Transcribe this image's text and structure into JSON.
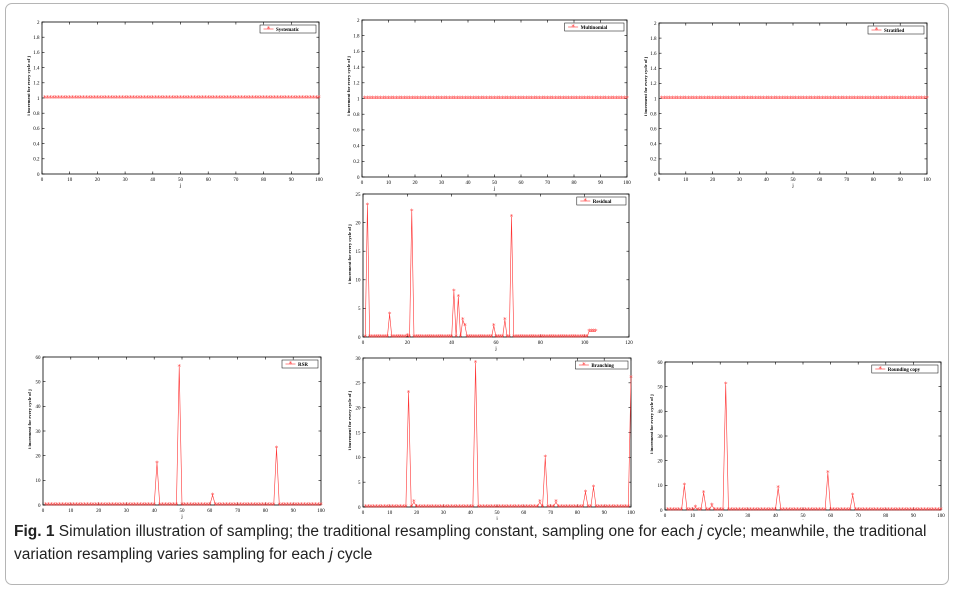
{
  "caption": {
    "label": "Fig. 1",
    "text_1": "Simulation illustration of sampling; the traditional resampling constant, sampling one for each",
    "var_j": "j",
    "text_2": "cycle; meanwhile, the traditional variation resampling varies sampling for each",
    "text_3": "cycle"
  },
  "colors": {
    "series": "#ff3333",
    "axis": "#000000",
    "marker": "*"
  },
  "chart_data": [
    {
      "type": "line",
      "legend": "Systematic",
      "legend_position": "top-right",
      "xlabel": "j",
      "ylabel": "i increment for every cycle of j",
      "xlim": [
        0,
        100
      ],
      "ylim": [
        0,
        2
      ],
      "xticks": [
        "0",
        "10",
        "20",
        "30",
        "40",
        "50",
        "60",
        "70",
        "80",
        "90",
        "100"
      ],
      "yticks": [
        "0",
        "0.2",
        "0.4",
        "0.6",
        "0.8",
        "1",
        "1.2",
        "1.4",
        "1.6",
        "1.8",
        "2"
      ],
      "series": [
        {
          "name": "Systematic",
          "x": "j = 1..100",
          "constant": 1
        }
      ]
    },
    {
      "type": "line",
      "legend": "Multinomial",
      "legend_position": "top-right",
      "xlabel": "j",
      "ylabel": "i increment for every cycle of j",
      "xlim": [
        0,
        100
      ],
      "ylim": [
        0,
        2
      ],
      "xticks": [
        "0",
        "10",
        "20",
        "30",
        "40",
        "50",
        "60",
        "70",
        "80",
        "90",
        "100"
      ],
      "yticks": [
        "0",
        "0.2",
        "0.4",
        "0.6",
        "0.8",
        "1",
        "1.2",
        "1.4",
        "1.6",
        "1.8",
        "2"
      ],
      "series": [
        {
          "name": "Multinomial",
          "x": "j = 1..100",
          "constant": 1
        }
      ]
    },
    {
      "type": "line",
      "legend": "Stratified",
      "legend_position": "top-right",
      "xlabel": "j",
      "ylabel": "i increment for every cycle of j",
      "xlim": [
        0,
        100
      ],
      "ylim": [
        0,
        2
      ],
      "xticks": [
        "0",
        "10",
        "20",
        "30",
        "40",
        "50",
        "60",
        "70",
        "80",
        "90",
        "100"
      ],
      "yticks": [
        "0",
        "0.2",
        "0.4",
        "0.6",
        "0.8",
        "1",
        "1.2",
        "1.4",
        "1.6",
        "1.8",
        "2"
      ],
      "series": [
        {
          "name": "Stratified",
          "x": "j = 1..100",
          "constant": 1
        }
      ]
    },
    {
      "type": "line",
      "legend": "Residual",
      "legend_position": "top-right",
      "xlabel": "j",
      "ylabel": "i increment for every cycle of j",
      "xlim": [
        0,
        120
      ],
      "ylim": [
        0,
        25
      ],
      "xticks": [
        "0",
        "20",
        "40",
        "60",
        "80",
        "100",
        "120"
      ],
      "yticks": [
        "0",
        "5",
        "10",
        "15",
        "20",
        "25"
      ],
      "series": [
        {
          "name": "Residual",
          "peaks": [
            [
              2,
              23
            ],
            [
              12,
              4
            ],
            [
              20,
              0.2
            ],
            [
              22,
              22
            ],
            [
              41,
              8
            ],
            [
              43,
              7
            ],
            [
              45,
              3
            ],
            [
              46,
              2
            ],
            [
              59,
              2
            ],
            [
              64,
              3
            ],
            [
              67,
              21
            ]
          ],
          "tail": {
            "from": 102,
            "to": 105,
            "value": 1
          },
          "baseline_to": 101
        }
      ]
    },
    {
      "type": "line",
      "legend": "RSR",
      "legend_position": "top-right",
      "xlabel": "j",
      "ylabel": "i increment for every cycle of j",
      "xlim": [
        0,
        100
      ],
      "ylim": [
        0,
        60
      ],
      "xticks": [
        "0",
        "10",
        "20",
        "30",
        "40",
        "50",
        "60",
        "70",
        "80",
        "90",
        "100"
      ],
      "yticks": [
        "0",
        "10",
        "20",
        "30",
        "40",
        "50",
        "60"
      ],
      "series": [
        {
          "name": "RSR",
          "peaks": [
            [
              41,
              17
            ],
            [
              49,
              56
            ],
            [
              61,
              4
            ],
            [
              84,
              23
            ]
          ],
          "baseline_to": 100
        }
      ]
    },
    {
      "type": "line",
      "legend": "Branching",
      "legend_position": "top-right",
      "xlabel": "j",
      "ylabel": "i increment for every cycle of j",
      "xlim": [
        0,
        100
      ],
      "ylim": [
        0,
        30
      ],
      "xticks": [
        "0",
        "10",
        "20",
        "30",
        "40",
        "50",
        "60",
        "70",
        "80",
        "90",
        "100"
      ],
      "yticks": [
        "0",
        "5",
        "10",
        "15",
        "20",
        "25",
        "30"
      ],
      "series": [
        {
          "name": "Branching",
          "peaks": [
            [
              17,
              23
            ],
            [
              19,
              1
            ],
            [
              42,
              29
            ],
            [
              66,
              1
            ],
            [
              68,
              10
            ],
            [
              72,
              1
            ],
            [
              83,
              3
            ],
            [
              86,
              4
            ],
            [
              100,
              26
            ]
          ],
          "baseline_to": 100
        }
      ]
    },
    {
      "type": "line",
      "legend": "Rounding copy",
      "legend_position": "top-right",
      "xlabel": "j",
      "ylabel": "i increment for every cycle of j",
      "xlim": [
        0,
        100
      ],
      "ylim": [
        0,
        60
      ],
      "xticks": [
        "0",
        "10",
        "20",
        "30",
        "40",
        "50",
        "60",
        "70",
        "80",
        "90",
        "100"
      ],
      "yticks": [
        "0",
        "10",
        "20",
        "30",
        "40",
        "50",
        "60"
      ],
      "series": [
        {
          "name": "Rounding copy",
          "peaks": [
            [
              7,
              10
            ],
            [
              11,
              1
            ],
            [
              14,
              7
            ],
            [
              17,
              2
            ],
            [
              22,
              51
            ],
            [
              41,
              9
            ],
            [
              59,
              15
            ],
            [
              68,
              6
            ]
          ],
          "baseline_to": 100
        }
      ]
    }
  ]
}
